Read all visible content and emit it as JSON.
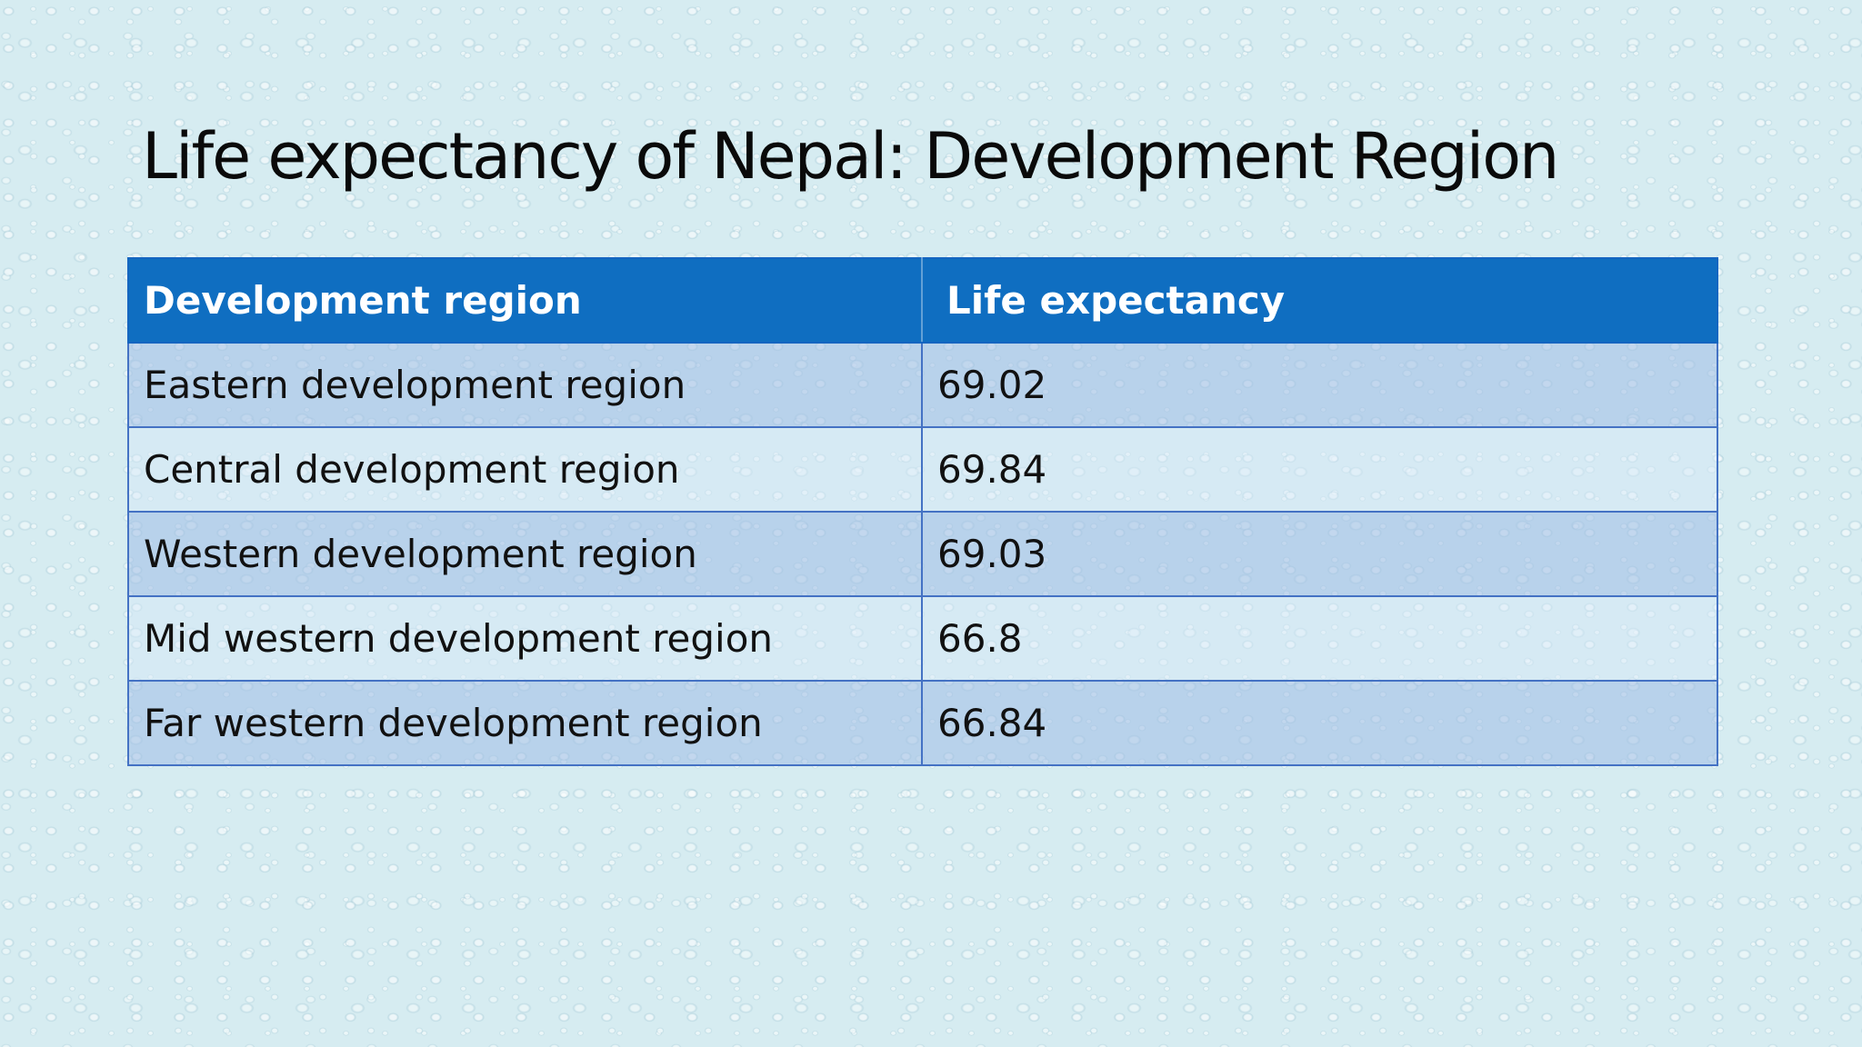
{
  "slide": {
    "title": "Life expectancy of Nepal: Development Region"
  },
  "table": {
    "headers": [
      "Development region",
      "Life expectancy"
    ],
    "rows": [
      [
        "Eastern development region",
        "69.02"
      ],
      [
        "Central development region",
        "69.84"
      ],
      [
        "Western development region",
        "69.03"
      ],
      [
        "Mid western development region",
        "66.8"
      ],
      [
        "Far western development region",
        "66.84"
      ]
    ],
    "header_color": "#0f6ec1",
    "border_color": "#4472c4"
  }
}
